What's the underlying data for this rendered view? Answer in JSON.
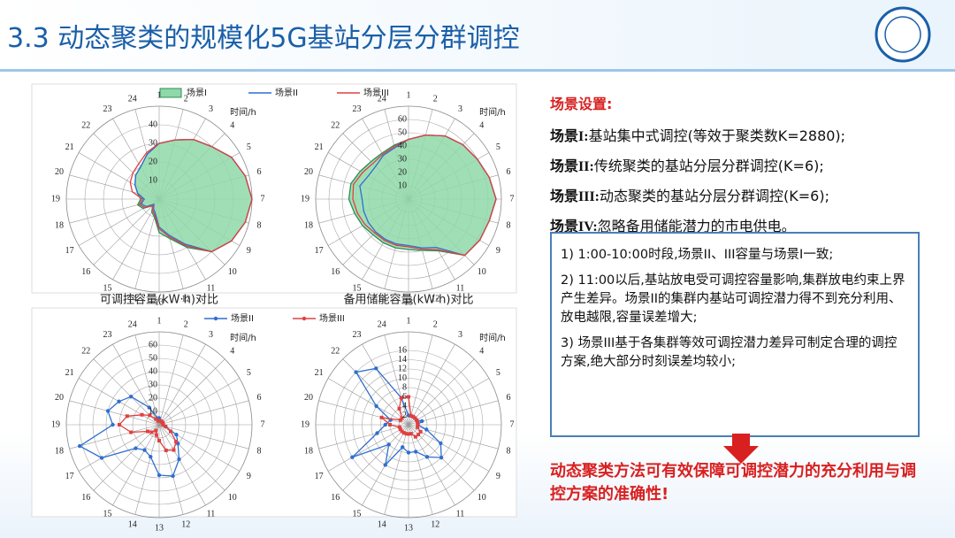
{
  "header": {
    "title": "3.3 动态聚类的规模化5G基站分层分群调控"
  },
  "chart_data": [
    {
      "type": "radar",
      "axis_label": "时间/h",
      "caption": "可调控容量(kW·h)对比",
      "legend": "top",
      "categories": [
        "1",
        "2",
        "3",
        "4",
        "5",
        "6",
        "7",
        "8",
        "9",
        "10",
        "11",
        "12",
        "13",
        "14",
        "15",
        "16",
        "17",
        "18",
        "19",
        "20",
        "21",
        "22",
        "23",
        "24"
      ],
      "rlim": [
        0,
        50
      ],
      "rticks": [
        10,
        20,
        30,
        40
      ],
      "series": [
        {
          "name": "场景I",
          "color": "#2e8b57",
          "fill": "#8fd9a8",
          "values": [
            30,
            33,
            37,
            40,
            45,
            48,
            50,
            48,
            45,
            40,
            30,
            22,
            18,
            10,
            8,
            5,
            10,
            12,
            10,
            12,
            15,
            18,
            20,
            25
          ]
        },
        {
          "name": "场景II",
          "color": "#2f6fd0",
          "values": [
            30,
            33,
            37,
            40,
            45,
            48,
            50,
            48,
            45,
            40,
            28,
            20,
            15,
            8,
            6,
            4,
            8,
            10,
            8,
            12,
            15,
            18,
            20,
            25
          ]
        },
        {
          "name": "场景III",
          "color": "#e04040",
          "values": [
            30,
            33,
            37,
            40,
            45,
            48,
            50,
            48,
            45,
            40,
            29,
            21,
            16,
            9,
            7,
            5,
            9,
            11,
            9,
            15,
            18,
            20,
            22,
            26
          ]
        }
      ]
    },
    {
      "type": "radar",
      "axis_label": "时间/h",
      "caption": "备用储能容量(kW·h)对比",
      "categories": [
        "1",
        "2",
        "3",
        "4",
        "5",
        "6",
        "7",
        "8",
        "9",
        "10",
        "11",
        "12",
        "13",
        "14",
        "15",
        "16",
        "17",
        "18",
        "19",
        "20",
        "21",
        "22",
        "23",
        "24"
      ],
      "rlim": [
        0,
        70
      ],
      "rticks": [
        10,
        20,
        30,
        40,
        50,
        60
      ],
      "series": [
        {
          "name": "场景I",
          "color": "#2e8b57",
          "fill": "#8fd9a8",
          "values": [
            45,
            50,
            55,
            58,
            60,
            63,
            66,
            63,
            62,
            60,
            45,
            40,
            38,
            38,
            38,
            38,
            40,
            42,
            45,
            45,
            42,
            40,
            40,
            42
          ]
        },
        {
          "name": "场景II",
          "color": "#2f6fd0",
          "values": [
            45,
            50,
            55,
            58,
            60,
            63,
            66,
            63,
            62,
            60,
            42,
            38,
            35,
            35,
            35,
            35,
            35,
            35,
            35,
            38,
            35,
            35,
            38,
            40
          ]
        },
        {
          "name": "场景III",
          "color": "#e04040",
          "values": [
            45,
            50,
            55,
            58,
            60,
            63,
            66,
            63,
            62,
            60,
            44,
            39,
            36,
            36,
            36,
            36,
            38,
            40,
            42,
            43,
            40,
            38,
            39,
            41
          ]
        }
      ]
    },
    {
      "type": "radar",
      "axis_label": "时间/h",
      "legend": "top",
      "categories": [
        "1",
        "2",
        "3",
        "4",
        "5",
        "6",
        "7",
        "8",
        "9",
        "10",
        "11",
        "12",
        "13",
        "14",
        "15",
        "16",
        "17",
        "18",
        "19",
        "20",
        "21",
        "22",
        "23",
        "24"
      ],
      "rlim": [
        0,
        70
      ],
      "rticks": [
        10,
        20,
        30,
        40,
        50,
        60
      ],
      "series": [
        {
          "name": "场景II",
          "color": "#2f6fd0",
          "marker": "circle",
          "values": [
            5,
            3,
            3,
            3,
            3,
            3,
            3,
            5,
            15,
            20,
            30,
            40,
            38,
            25,
            22,
            25,
            50,
            62,
            35,
            40,
            35,
            30,
            15,
            5
          ]
        },
        {
          "name": "场景III",
          "color": "#e04040",
          "marker": "square",
          "values": [
            3,
            3,
            3,
            3,
            3,
            3,
            3,
            5,
            10,
            18,
            22,
            20,
            12,
            8,
            5,
            8,
            10,
            22,
            30,
            25,
            15,
            10,
            5,
            3
          ]
        }
      ]
    },
    {
      "type": "radar",
      "axis_label": "时间/h",
      "categories": [
        "1",
        "2",
        "3",
        "4",
        "5",
        "6",
        "7",
        "8",
        "9",
        "10",
        "11",
        "12",
        "13",
        "14",
        "15",
        "16",
        "17",
        "18",
        "19",
        "20",
        "21",
        "22",
        "23",
        "24"
      ],
      "rlim": [
        0,
        20
      ],
      "rticks": [
        2,
        4,
        6,
        8,
        10,
        12,
        14,
        16
      ],
      "series": [
        {
          "name": "场景II",
          "color": "#2f6fd0",
          "marker": "circle",
          "values": [
            2,
            2,
            2,
            2,
            2,
            3,
            2,
            4,
            8,
            10,
            8,
            6,
            6,
            5,
            10,
            6,
            14,
            7,
            5,
            4,
            8,
            16,
            14,
            6
          ]
        },
        {
          "name": "场景III",
          "color": "#e04040",
          "marker": "square",
          "values": [
            6,
            2,
            2,
            2,
            2,
            2,
            2,
            2,
            3,
            3,
            3,
            2,
            2,
            2,
            2,
            2,
            2,
            2,
            4,
            6,
            2,
            2,
            4,
            6
          ]
        }
      ]
    }
  ],
  "scenarios": {
    "heading": "场景设置:",
    "items": [
      {
        "label": "场景I:",
        "text": "基站集中式调控(等效于聚类数K=2880);"
      },
      {
        "label": "场景II:",
        "text": "传统聚类的基站分层分群调控(K=6);"
      },
      {
        "label": "场景III:",
        "text": "动态聚类的基站分层分群调控(K=6);"
      },
      {
        "label": "场景IV:",
        "text": "忽略备用储能潜力的市电供电。"
      }
    ]
  },
  "notes": [
    "1) 1:00-10:00时段,场景II、III容量与场景I一致;",
    "2) 11:00以后,基站放电受可调控容量影响,集群放电约束上界产生差异。场景II的集群内基站可调控潜力得不到充分利用、放电越限,容量误差增大;",
    "3) 场景III基于各集群等效可调控潜力差异可制定合理的调控方案,绝大部分时刻误差均较小;"
  ],
  "conclusion": "动态聚类方法可有效保障可调控潜力的充分利用与调控方案的准确性!"
}
